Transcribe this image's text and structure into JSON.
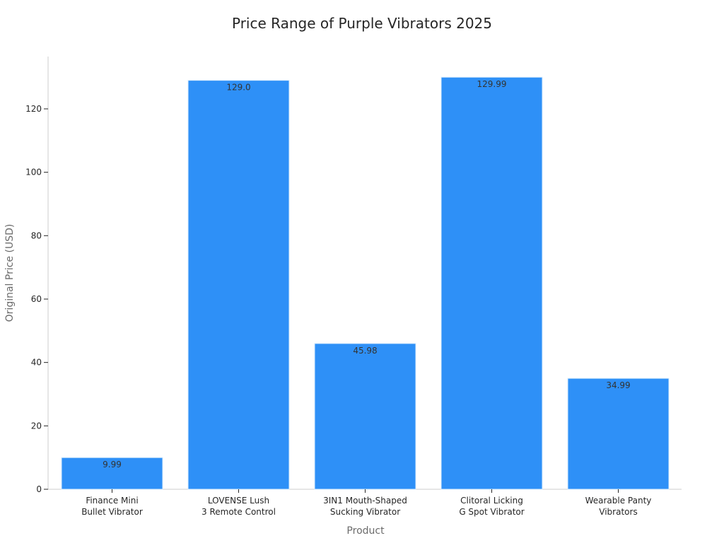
{
  "chart_data": {
    "type": "bar",
    "title": "Price Range of Purple Vibrators 2025",
    "xlabel": "Product",
    "ylabel": "Original Price (USD)",
    "categories": [
      [
        "Finance Mini",
        "Bullet Vibrator"
      ],
      [
        "LOVENSE Lush",
        "3 Remote Control"
      ],
      [
        "3IN1 Mouth-Shaped",
        "Sucking Vibrator"
      ],
      [
        "Clitoral Licking",
        "G Spot Vibrator"
      ],
      [
        "Wearable Panty",
        "Vibrators"
      ]
    ],
    "values": [
      9.99,
      129.0,
      45.98,
      129.99,
      34.99
    ],
    "value_labels": [
      "9.99",
      "129.0",
      "45.98",
      "129.99",
      "34.99"
    ],
    "yticks": [
      0,
      20,
      40,
      60,
      80,
      100,
      120
    ],
    "ytick_labels": [
      "0",
      "20",
      "40",
      "60",
      "80",
      "100",
      "120"
    ],
    "ylim": [
      0,
      136.5
    ],
    "bar_color": "#2e90f7",
    "axis_color": "#cccccc",
    "grid": false,
    "legend": "none"
  }
}
